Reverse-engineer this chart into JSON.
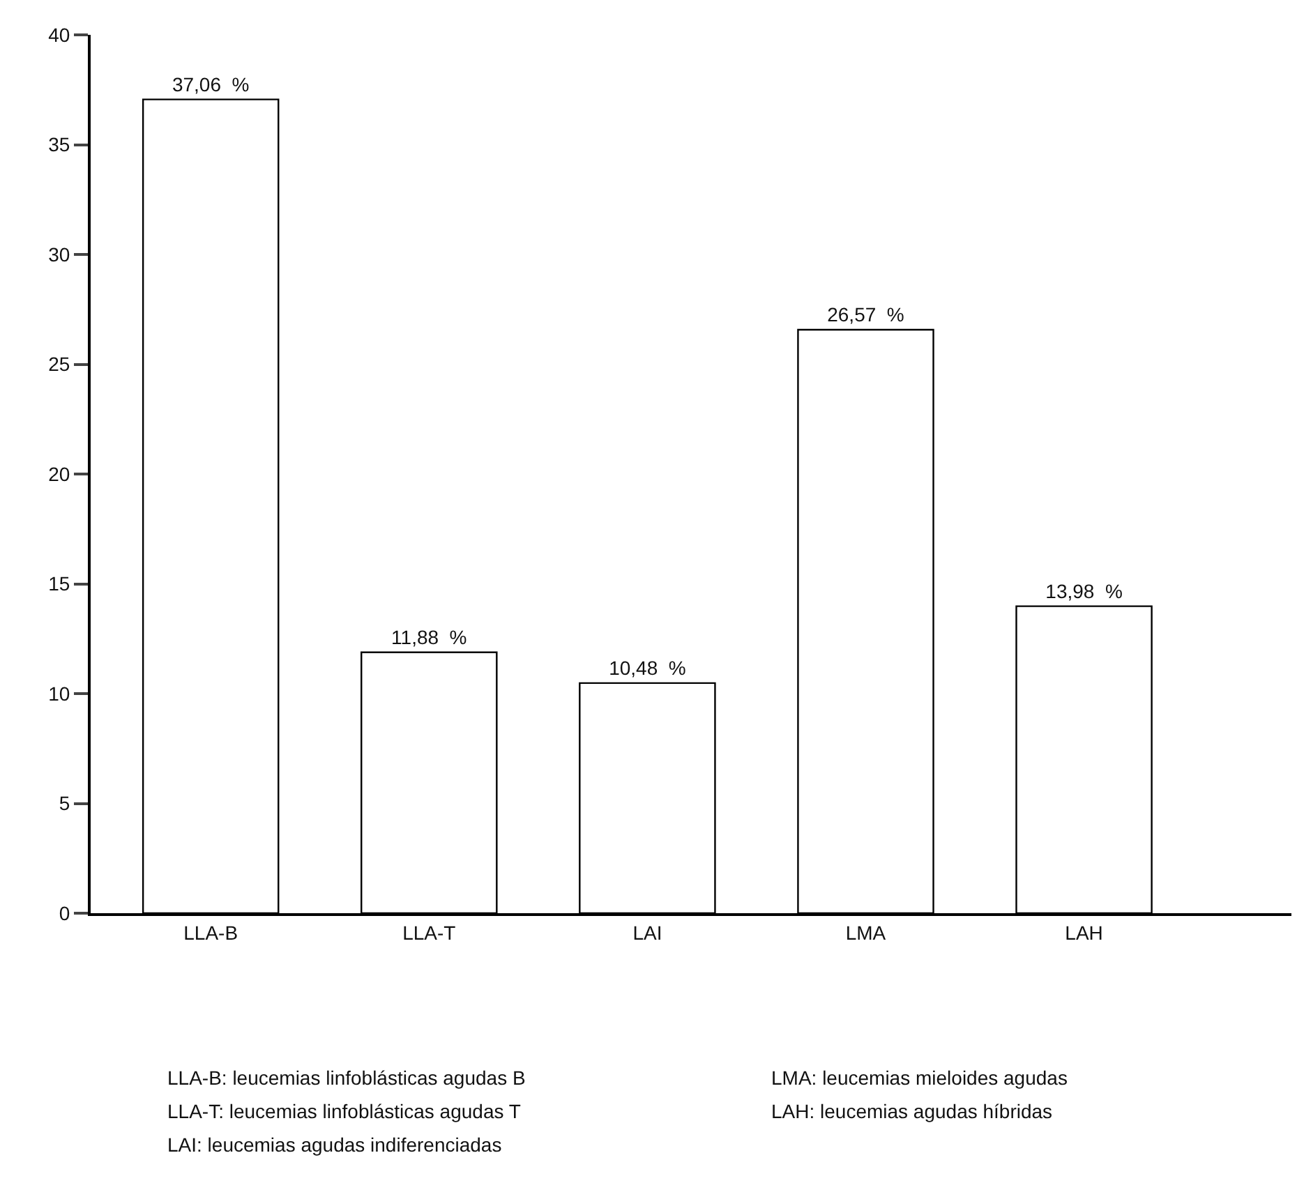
{
  "chart_data": {
    "type": "bar",
    "categories": [
      "LLA-B",
      "LLA-T",
      "LAI",
      "LMA",
      "LAH"
    ],
    "values": [
      37.06,
      11.88,
      10.48,
      26.57,
      13.98
    ],
    "value_labels": [
      "37,06  %",
      "11,88  %",
      "10,48  %",
      "26,57  %",
      "13,98  %"
    ],
    "color": "#ffffff",
    "ylim": [
      0,
      40
    ],
    "yticks": [
      0,
      5,
      10,
      15,
      20,
      25,
      30,
      35,
      40
    ],
    "grid": false,
    "annotations": [
      "LLA-B: leucemias linfoblásticas agudas B",
      "LLA-T: leucemias linfoblásticas agudas T",
      "LAI: leucemias agudas indiferenciadas",
      "LMA: leucemias mieloides agudas",
      "LAH: leucemias agudas híbridas"
    ]
  }
}
